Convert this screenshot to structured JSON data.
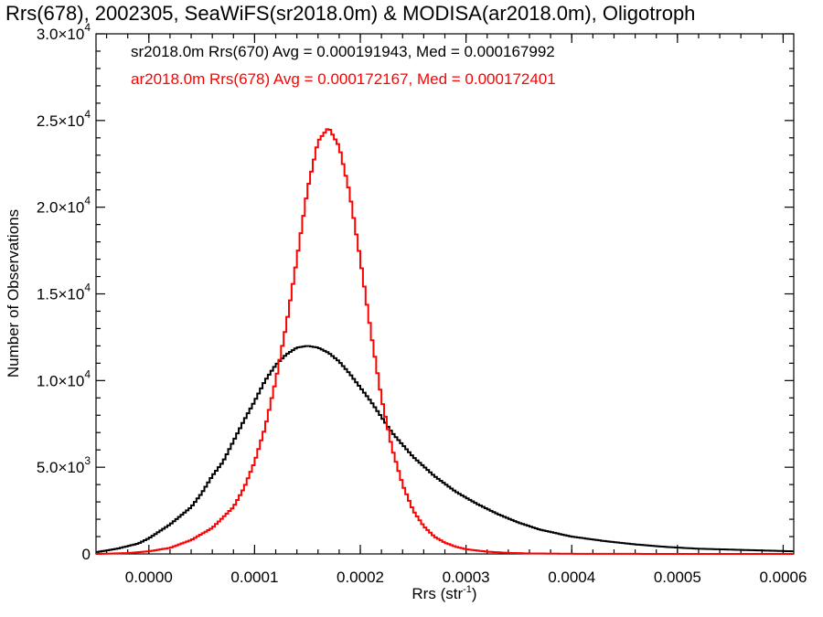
{
  "chart_data": {
    "type": "histogram-step",
    "title": "Rrs(678), 2002305, SeaWiFS(sr2018.0m) & MODISA(ar2018.0m), Oligotroph",
    "xlabel_base": "Rrs (str",
    "xlabel_sup": "-1",
    "xlabel_end": ")",
    "ylabel": "Number of Observations",
    "xlim": [
      -5e-05,
      0.00061
    ],
    "ylim": [
      0,
      30000
    ],
    "x_tick_labels": [
      "0.0000",
      "0.0001",
      "0.0002",
      "0.0003",
      "0.0004",
      "0.0005",
      "0.0006"
    ],
    "x_ticks": [
      0.0,
      0.0001,
      0.0002,
      0.0003,
      0.0004,
      0.0005,
      0.0006
    ],
    "y_ticks": [
      {
        "value": 0,
        "mantissa": "0",
        "exp": ""
      },
      {
        "value": 5000,
        "mantissa": "5.0×10",
        "exp": "3"
      },
      {
        "value": 10000,
        "mantissa": "1.0×10",
        "exp": "4"
      },
      {
        "value": 15000,
        "mantissa": "1.5×10",
        "exp": "4"
      },
      {
        "value": 20000,
        "mantissa": "2.0×10",
        "exp": "4"
      },
      {
        "value": 25000,
        "mantissa": "2.5×10",
        "exp": "4"
      },
      {
        "value": 30000,
        "mantissa": "3.0×10",
        "exp": "4"
      }
    ],
    "series": [
      {
        "name": "sr2018.0m Rrs(670)",
        "legend": "sr2018.0m Rrs(670) Avg = 0.000191943, Med = 0.000167992",
        "color": "#000000",
        "x": [
          -5e-05,
          -3e-05,
          -1e-05,
          0.0,
          2e-05,
          4e-05,
          5e-05,
          6e-05,
          7e-05,
          8e-05,
          9e-05,
          0.0001,
          0.00011,
          0.00012,
          0.00013,
          0.00014,
          0.00015,
          0.00016,
          0.00017,
          0.00018,
          0.00019,
          0.0002,
          0.00021,
          0.00022,
          0.00023,
          0.00024,
          0.00025,
          0.00027,
          0.00029,
          0.00031,
          0.00033,
          0.00035,
          0.00037,
          0.0004,
          0.00043,
          0.00046,
          0.00049,
          0.00052,
          0.00055,
          0.00058,
          0.00061
        ],
        "y": [
          100,
          300,
          600,
          900,
          1700,
          2700,
          3500,
          4500,
          5300,
          6500,
          7700,
          8800,
          10000,
          10900,
          11500,
          11900,
          12000,
          11900,
          11600,
          11100,
          10400,
          9600,
          8800,
          7900,
          7000,
          6300,
          5600,
          4500,
          3600,
          2900,
          2300,
          1800,
          1400,
          1000,
          750,
          550,
          400,
          300,
          250,
          200,
          150
        ]
      },
      {
        "name": "ar2018.0m Rrs(678)",
        "legend": "ar2018.0m Rrs(678) Avg = 0.000172167, Med = 0.000172401",
        "color": "#ff0000",
        "x": [
          -5e-05,
          -2e-05,
          0.0,
          2e-05,
          4e-05,
          6e-05,
          8e-05,
          9e-05,
          0.0001,
          0.00011,
          0.00012,
          0.00013,
          0.00014,
          0.00015,
          0.00016,
          0.00017,
          0.00018,
          0.00019,
          0.0002,
          0.00021,
          0.00022,
          0.00023,
          0.00024,
          0.00025,
          0.00026,
          0.00027,
          0.00028,
          0.00029,
          0.0003,
          0.00032,
          0.00034,
          0.00036,
          0.0004,
          0.0005,
          0.00061
        ],
        "y": [
          0,
          50,
          150,
          350,
          800,
          1500,
          2700,
          3800,
          5300,
          7300,
          10000,
          13200,
          17000,
          21000,
          23800,
          24600,
          23500,
          20800,
          17000,
          12800,
          9000,
          6100,
          4000,
          2500,
          1600,
          1000,
          650,
          420,
          270,
          130,
          60,
          30,
          10,
          0,
          0
        ]
      }
    ]
  }
}
